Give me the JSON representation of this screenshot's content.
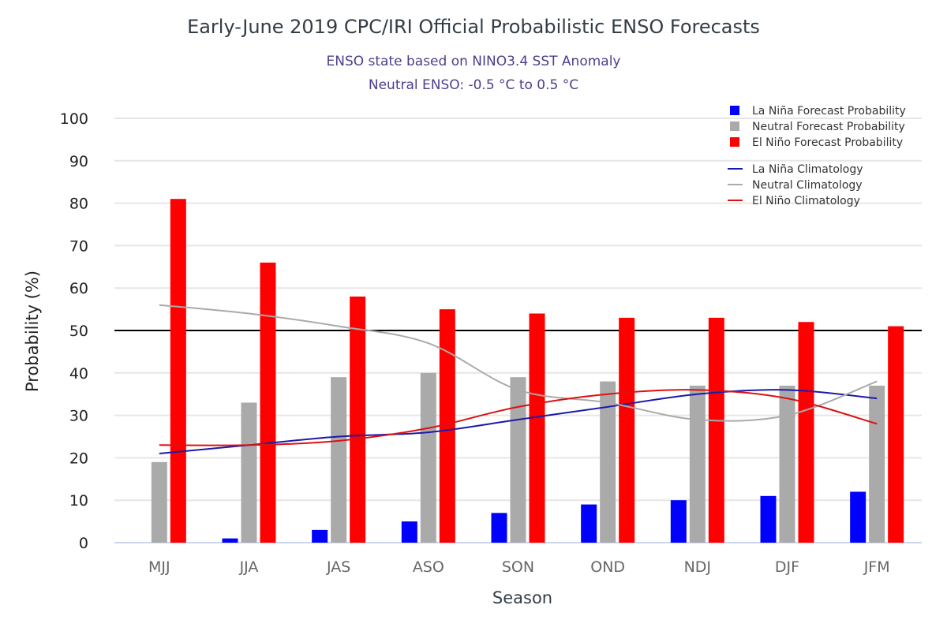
{
  "title": "Early-June 2019 CPC/IRI Official Probabilistic ENSO Forecasts",
  "subtitle_lines": [
    "ENSO state based on NINO3.4 SST Anomaly",
    "Neutral ENSO: -0.5 °C to 0.5 °C"
  ],
  "chart_data": {
    "type": "bar",
    "title": "Early-June 2019 CPC/IRI Official Probabilistic ENSO Forecasts",
    "subtitle": "ENSO state based on NINO3.4 SST Anomaly / Neutral ENSO: -0.5 °C to 0.5 °C",
    "xlabel": "Season",
    "ylabel": "Probability (%)",
    "ylim": [
      0,
      100
    ],
    "yticks": [
      0,
      10,
      20,
      30,
      40,
      50,
      60,
      70,
      80,
      90,
      100
    ],
    "grid": true,
    "reference_line": 50,
    "legend_position": "top-right",
    "categories": [
      "MJJ",
      "JJA",
      "JAS",
      "ASO",
      "SON",
      "OND",
      "NDJ",
      "DJF",
      "JFM"
    ],
    "series": [
      {
        "name": "La Niña Forecast Probability",
        "kind": "bar",
        "color": "#0000ff",
        "values": [
          0,
          1,
          3,
          5,
          7,
          9,
          10,
          11,
          12
        ]
      },
      {
        "name": "Neutral Forecast Probability",
        "kind": "bar",
        "color": "#aaaaaa",
        "values": [
          19,
          33,
          39,
          40,
          39,
          38,
          37,
          37,
          37
        ]
      },
      {
        "name": "El Niño Forecast Probability",
        "kind": "bar",
        "color": "#ff0000",
        "values": [
          81,
          66,
          58,
          55,
          54,
          53,
          53,
          52,
          51
        ]
      },
      {
        "name": "La Niña Climatology",
        "kind": "line",
        "color": "#1a1aaa",
        "values": [
          21,
          23,
          25,
          26,
          29,
          32,
          35,
          36,
          34
        ]
      },
      {
        "name": "Neutral Climatology",
        "kind": "line",
        "color": "#aaaaaa",
        "values": [
          56,
          54,
          51,
          47,
          36,
          33,
          29,
          30,
          38
        ]
      },
      {
        "name": "El Niño Climatology",
        "kind": "line",
        "color": "#dd1111",
        "values": [
          23,
          23,
          24,
          27,
          32,
          35,
          36,
          34,
          28
        ]
      }
    ]
  }
}
